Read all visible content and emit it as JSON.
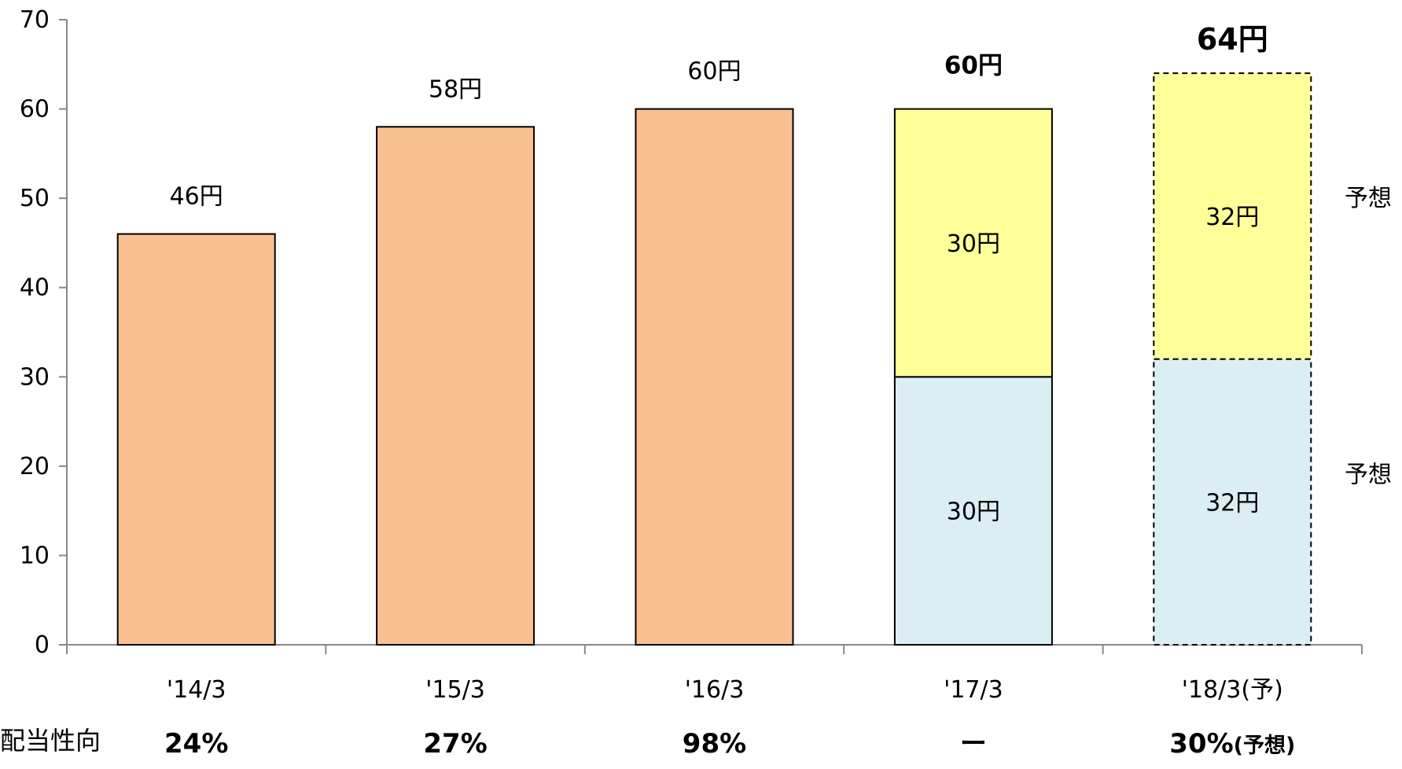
{
  "chart_data": {
    "type": "bar",
    "categories": [
      "'14/3",
      "'15/3",
      "'16/3",
      "'17/3",
      "'18/3(予)"
    ],
    "ylim": [
      0,
      70
    ],
    "yticks": [
      0,
      10,
      20,
      30,
      40,
      50,
      60,
      70
    ],
    "grid": false,
    "series": [
      {
        "values": [
          46,
          58,
          60,
          null,
          null
        ],
        "color": "#F9C091"
      },
      {
        "values": [
          null,
          null,
          null,
          30,
          32
        ],
        "color": "#DAEEF3"
      },
      {
        "values": [
          null,
          null,
          null,
          30,
          32
        ],
        "color": "#FFFF99"
      }
    ],
    "total_labels": [
      "46円",
      "58円",
      "60円",
      "60円",
      "64円"
    ],
    "segment_labels": {
      "'17/3": [
        "30円",
        "30円"
      ],
      "'18/3(予)": [
        "32円",
        "32円"
      ]
    },
    "forecast_bar_style": "dashed",
    "side_labels": [
      "予想",
      "予想"
    ]
  },
  "payout": {
    "title": "配当性向",
    "values": [
      "24%",
      "27%",
      "98%",
      "ー",
      "30%"
    ],
    "last_suffix": "(予想)"
  }
}
